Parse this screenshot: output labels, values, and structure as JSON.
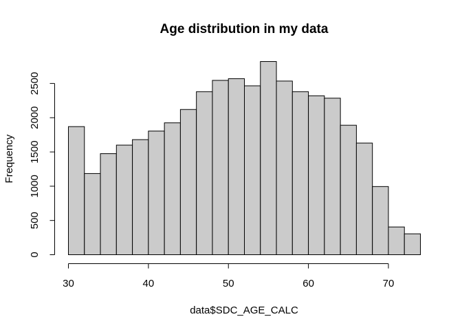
{
  "chart_data": {
    "type": "bar",
    "title": "Age distribution in my data",
    "xlabel": "data$SDC_AGE_CALC",
    "ylabel": "Frequency",
    "bin_edges": [
      30,
      32,
      34,
      36,
      38,
      40,
      42,
      44,
      46,
      48,
      50,
      52,
      54,
      56,
      58,
      60,
      62,
      64,
      66,
      68,
      70,
      72,
      74
    ],
    "values": [
      1870,
      1185,
      1475,
      1600,
      1680,
      1805,
      1925,
      2120,
      2380,
      2545,
      2570,
      2465,
      2820,
      2535,
      2380,
      2320,
      2285,
      1890,
      1630,
      995,
      405,
      305
    ],
    "xlim": [
      30,
      74
    ],
    "ylim": [
      0,
      2820
    ],
    "x_ticks": [
      30,
      40,
      50,
      60,
      70
    ],
    "y_ticks": [
      0,
      500,
      1000,
      1500,
      2000,
      2500
    ],
    "bar_color": "#cbcbcb",
    "edge_color": "#000000",
    "grid": false
  }
}
